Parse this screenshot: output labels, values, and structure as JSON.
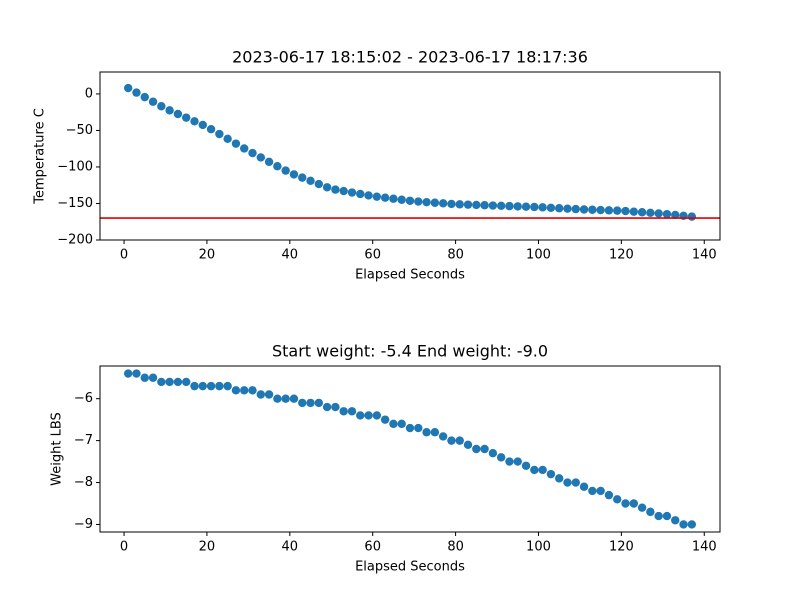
{
  "chart_data": [
    {
      "type": "scatter",
      "title": "2023-06-17 18:15:02 - 2023-06-17 18:17:36",
      "xlabel": "Elapsed Seconds",
      "ylabel": "Temperature C",
      "x": [
        1,
        3,
        5,
        7,
        9,
        11,
        13,
        15,
        17,
        19,
        21,
        23,
        25,
        27,
        29,
        31,
        33,
        35,
        37,
        39,
        41,
        43,
        45,
        47,
        49,
        51,
        53,
        55,
        57,
        59,
        61,
        63,
        65,
        67,
        69,
        71,
        73,
        75,
        77,
        79,
        81,
        83,
        85,
        87,
        89,
        91,
        93,
        95,
        97,
        99,
        101,
        103,
        105,
        107,
        109,
        111,
        113,
        115,
        117,
        119,
        121,
        123,
        125,
        127,
        129,
        131,
        133,
        135,
        137
      ],
      "values": [
        8,
        1.8,
        -4.4,
        -10.7,
        -16.9,
        -22.5,
        -27.5,
        -32.5,
        -37.5,
        -42.5,
        -48.3,
        -54.9,
        -61.5,
        -68.1,
        -74.7,
        -81,
        -87,
        -93,
        -99,
        -105,
        -110.2,
        -114.6,
        -119,
        -123.4,
        -127.8,
        -131,
        -133,
        -135,
        -137,
        -139,
        -140.7,
        -142.1,
        -143.5,
        -144.9,
        -146.3,
        -147.4,
        -148.2,
        -149,
        -149.8,
        -150.6,
        -151.2,
        -151.6,
        -152,
        -152.4,
        -152.8,
        -153.2,
        -153.6,
        -154,
        -154.4,
        -154.8,
        -155.3,
        -155.9,
        -156.5,
        -157.1,
        -157.7,
        -158.2,
        -158.6,
        -159,
        -159.4,
        -159.8,
        -160.4,
        -161.2,
        -162,
        -162.8,
        -163.6,
        -164.6,
        -165.7,
        -166.9,
        -168
      ],
      "color": "#1f77b4",
      "hline": {
        "value": -170,
        "color": "#e00000"
      },
      "xlim": [
        -5.8,
        143.8
      ],
      "xticks": [
        0,
        20,
        40,
        60,
        80,
        100,
        120,
        140
      ],
      "ylim": [
        -200,
        30
      ],
      "yticks": [
        {
          "value": -200,
          "label": "−200"
        },
        {
          "value": -150,
          "label": "−150"
        },
        {
          "value": -100,
          "label": "−100"
        },
        {
          "value": -50,
          "label": "−50"
        },
        0
      ]
    },
    {
      "type": "scatter",
      "title": "Start weight: -5.4 End weight: -9.0",
      "xlabel": "Elapsed Seconds",
      "ylabel": "Weight LBS",
      "x": [
        1,
        3,
        5,
        7,
        9,
        11,
        13,
        15,
        17,
        19,
        21,
        23,
        25,
        27,
        29,
        31,
        33,
        35,
        37,
        39,
        41,
        43,
        45,
        47,
        49,
        51,
        53,
        55,
        57,
        59,
        61,
        63,
        65,
        67,
        69,
        71,
        73,
        75,
        77,
        79,
        81,
        83,
        85,
        87,
        89,
        91,
        93,
        95,
        97,
        99,
        101,
        103,
        105,
        107,
        109,
        111,
        113,
        115,
        117,
        119,
        121,
        123,
        125,
        127,
        129,
        131,
        133,
        135,
        137
      ],
      "values": [
        -5.4,
        -5.4,
        -5.5,
        -5.5,
        -5.6,
        -5.6,
        -5.6,
        -5.6,
        -5.7,
        -5.7,
        -5.7,
        -5.7,
        -5.7,
        -5.8,
        -5.8,
        -5.8,
        -5.9,
        -5.9,
        -6.0,
        -6.0,
        -6.0,
        -6.1,
        -6.1,
        -6.1,
        -6.2,
        -6.2,
        -6.3,
        -6.3,
        -6.4,
        -6.4,
        -6.4,
        -6.5,
        -6.6,
        -6.6,
        -6.7,
        -6.7,
        -6.8,
        -6.8,
        -6.9,
        -7.0,
        -7.0,
        -7.1,
        -7.2,
        -7.2,
        -7.3,
        -7.4,
        -7.5,
        -7.5,
        -7.6,
        -7.7,
        -7.7,
        -7.8,
        -7.9,
        -8.0,
        -8.0,
        -8.1,
        -8.2,
        -8.2,
        -8.3,
        -8.4,
        -8.5,
        -8.5,
        -8.6,
        -8.7,
        -8.8,
        -8.8,
        -8.9,
        -9.0,
        -9.0
      ],
      "color": "#1f77b4",
      "xlim": [
        -5.8,
        143.8
      ],
      "xticks": [
        0,
        20,
        40,
        60,
        80,
        100,
        120,
        140
      ],
      "ylim": [
        -9.18,
        -5.22
      ],
      "yticks": [
        {
          "value": -9,
          "label": "−9"
        },
        {
          "value": -8,
          "label": "−8"
        },
        {
          "value": -7,
          "label": "−7"
        },
        {
          "value": -6,
          "label": "−6"
        }
      ]
    }
  ]
}
